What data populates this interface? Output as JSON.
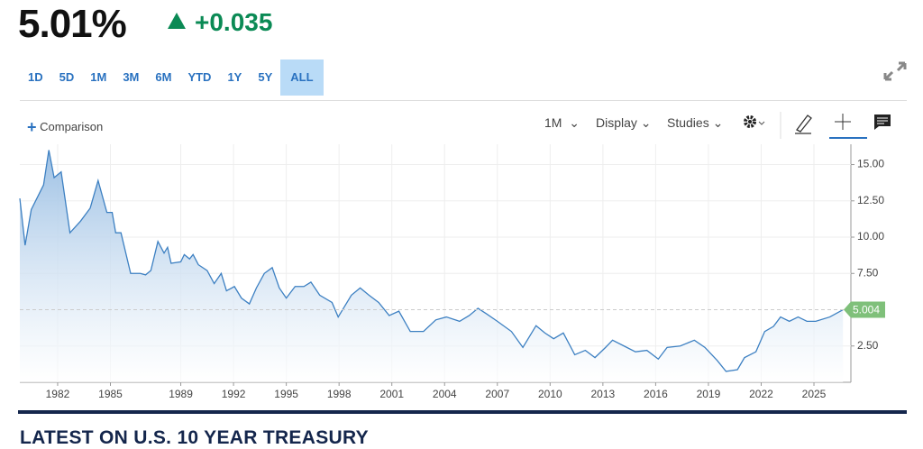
{
  "quote": {
    "price": "5.01%",
    "change": "+0.035"
  },
  "ranges": [
    "1D",
    "5D",
    "1M",
    "3M",
    "6M",
    "YTD",
    "1Y",
    "5Y",
    "ALL"
  ],
  "active_range": 8,
  "toolbar": {
    "comparison": "Comparison",
    "interval": "1M",
    "display": "Display",
    "studies": "Studies"
  },
  "section_title": "LATEST ON U.S. 10 YEAR TREASURY",
  "chart_data": {
    "type": "area",
    "color": "#3d80c2",
    "x": [
      1979.85,
      1980.15,
      1980.5,
      1981.2,
      1981.5,
      1981.8,
      1982.2,
      1982.7,
      1983.3,
      1983.85,
      1984.3,
      1984.8,
      1985.1,
      1985.3,
      1985.6,
      1986.15,
      1986.7,
      1987.0,
      1987.3,
      1987.7,
      1988.05,
      1988.25,
      1988.45,
      1989.0,
      1989.2,
      1989.5,
      1989.7,
      1990.0,
      1990.5,
      1990.9,
      1991.3,
      1991.6,
      1992.05,
      1992.45,
      1992.9,
      1993.3,
      1993.75,
      1994.2,
      1994.6,
      1995.0,
      1995.5,
      1996.0,
      1996.4,
      1996.9,
      1997.6,
      1997.95,
      1998.7,
      1999.2,
      1999.7,
      2000.25,
      2000.85,
      2001.4,
      2002.05,
      2002.8,
      2003.5,
      2004.1,
      2004.85,
      2005.4,
      2005.9,
      2006.4,
      2007.0,
      2007.8,
      2008.45,
      2009.2,
      2009.7,
      2010.2,
      2010.75,
      2011.4,
      2012.0,
      2012.55,
      2013.15,
      2013.55,
      2014.2,
      2014.85,
      2015.5,
      2016.15,
      2016.65,
      2017.4,
      2018.2,
      2018.8,
      2019.5,
      2020.0,
      2020.65,
      2021.05,
      2021.7,
      2022.2,
      2022.7,
      2023.1,
      2023.6,
      2024.1,
      2024.6,
      2025.1,
      2025.9,
      2026.65
    ],
    "values": [
      12.67,
      9.44,
      11.9,
      13.6,
      16.0,
      14.1,
      14.5,
      10.3,
      11.1,
      12.0,
      13.9,
      11.7,
      11.7,
      10.3,
      10.3,
      7.5,
      7.5,
      7.4,
      7.7,
      9.7,
      8.9,
      9.3,
      8.2,
      8.3,
      8.8,
      8.5,
      8.8,
      8.1,
      7.7,
      6.8,
      7.5,
      6.3,
      6.6,
      5.8,
      5.4,
      6.5,
      7.5,
      7.9,
      6.5,
      5.8,
      6.6,
      6.6,
      6.9,
      6.0,
      5.5,
      4.5,
      6.0,
      6.5,
      6.0,
      5.5,
      4.6,
      4.9,
      3.5,
      3.5,
      4.3,
      4.5,
      4.2,
      4.6,
      5.1,
      4.7,
      4.2,
      3.5,
      2.4,
      3.9,
      3.4,
      3.0,
      3.4,
      1.9,
      2.2,
      1.7,
      2.4,
      2.9,
      2.5,
      2.1,
      2.2,
      1.6,
      2.4,
      2.5,
      2.9,
      2.4,
      1.5,
      0.75,
      0.87,
      1.7,
      2.1,
      3.5,
      3.85,
      4.5,
      4.2,
      4.5,
      4.2,
      4.2,
      4.5,
      5.0
    ],
    "last_value": 5.004,
    "last_color": "#7fc07a",
    "xlim": [
      1979.85,
      2027.1
    ],
    "ylim": [
      0,
      16.4
    ],
    "xticks": [
      1982,
      1985,
      1989,
      1992,
      1995,
      1998,
      2001,
      2004,
      2007,
      2010,
      2013,
      2016,
      2019,
      2022,
      2025
    ],
    "yticks": [
      {
        "value": 2.5,
        "label": "2.50"
      },
      {
        "value": 7.5,
        "label": "7.50"
      },
      {
        "value": 10,
        "label": "10.00"
      },
      {
        "value": 12.5,
        "label": "12.50"
      },
      {
        "value": 15,
        "label": "15.00"
      }
    ],
    "grid": true
  }
}
